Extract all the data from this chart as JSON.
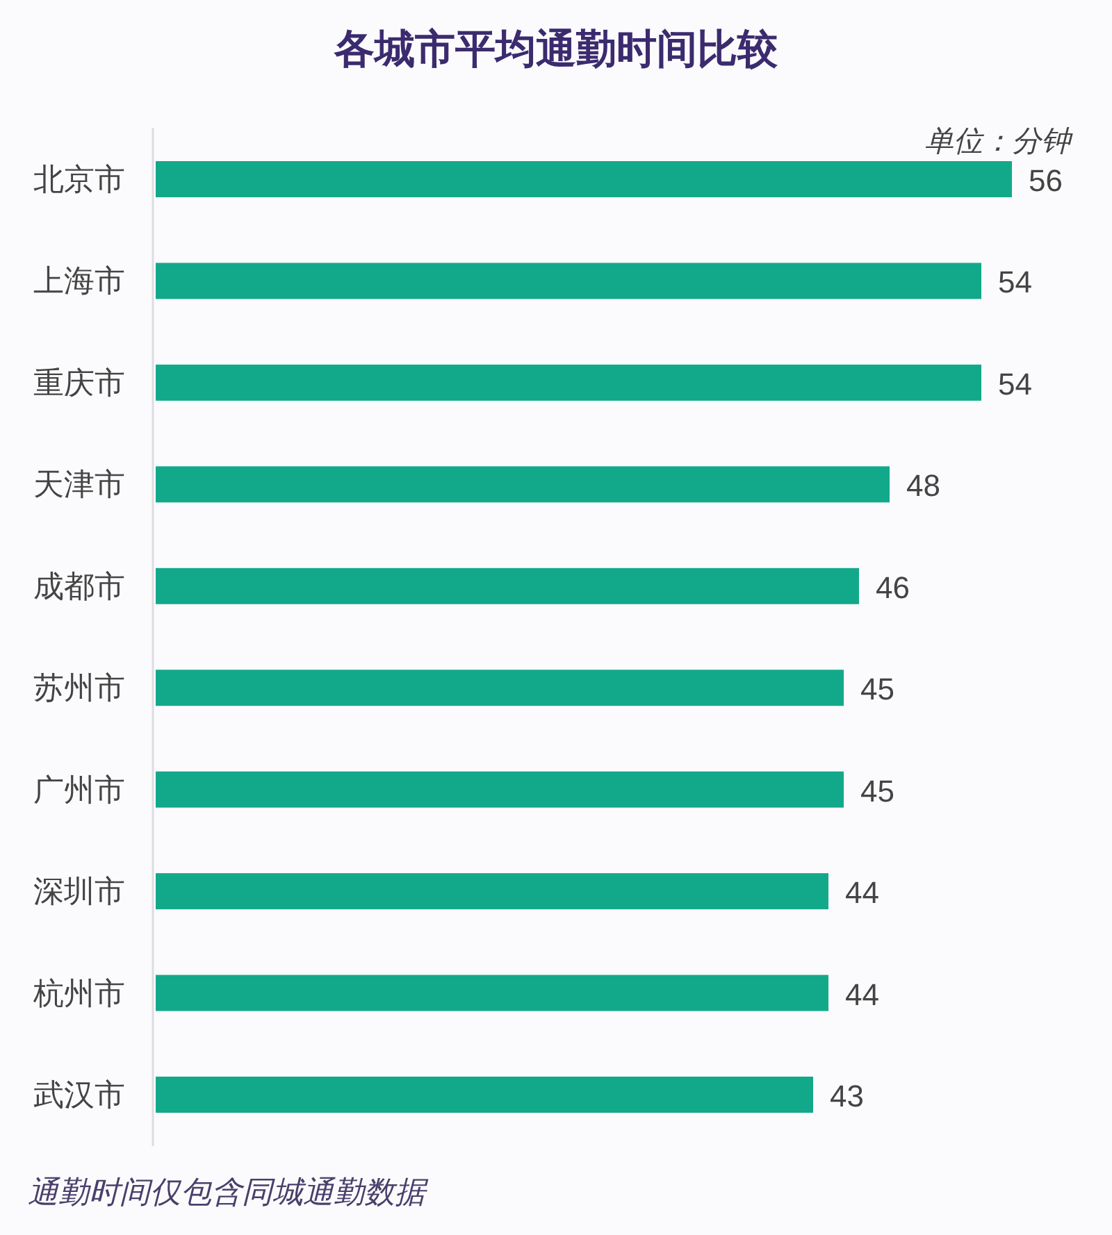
{
  "chart_data": {
    "type": "bar",
    "orientation": "horizontal",
    "title": "各城市平均通勤时间比较",
    "subtitle": "单位：分钟",
    "categories": [
      "北京市",
      "上海市",
      "重庆市",
      "天津市",
      "成都市",
      "苏州市",
      "广州市",
      "深圳市",
      "杭州市",
      "武汉市"
    ],
    "values": [
      56,
      54,
      54,
      48,
      46,
      45,
      45,
      44,
      44,
      43
    ],
    "color": "#12a98b",
    "data_labels": true,
    "annotations": [
      "通勤时间仅包含同城通勤数据"
    ]
  }
}
